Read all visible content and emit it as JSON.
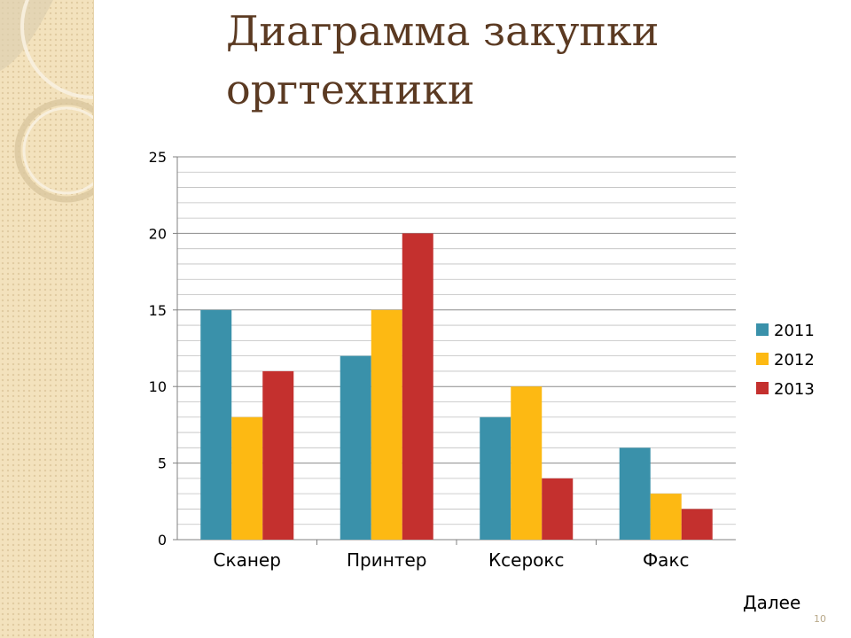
{
  "slide": {
    "title": "Диаграмма закупки оргтехники",
    "next_label": "Далее",
    "number": "10"
  },
  "colors": {
    "band": "#f3e2bd",
    "title": "#5b3a22",
    "series_2011": "#3a91aa",
    "series_2012": "#fdb913",
    "series_2013": "#c4302e",
    "grid": "#bfbfbf"
  },
  "chart_data": {
    "type": "bar",
    "title": "",
    "xlabel": "",
    "ylabel": "",
    "categories": [
      "Сканер",
      "Принтер",
      "Ксерокс",
      "Факс"
    ],
    "series": [
      {
        "name": "2011",
        "values": [
          15,
          12,
          8,
          6
        ]
      },
      {
        "name": "2012",
        "values": [
          8,
          15,
          10,
          3
        ]
      },
      {
        "name": "2013",
        "values": [
          11,
          20,
          4,
          2
        ]
      }
    ],
    "ylim": [
      0,
      25
    ],
    "y_major_ticks": [
      0,
      5,
      10,
      15,
      20,
      25
    ],
    "y_minor_step": 1,
    "grid": true,
    "legend": "right"
  }
}
